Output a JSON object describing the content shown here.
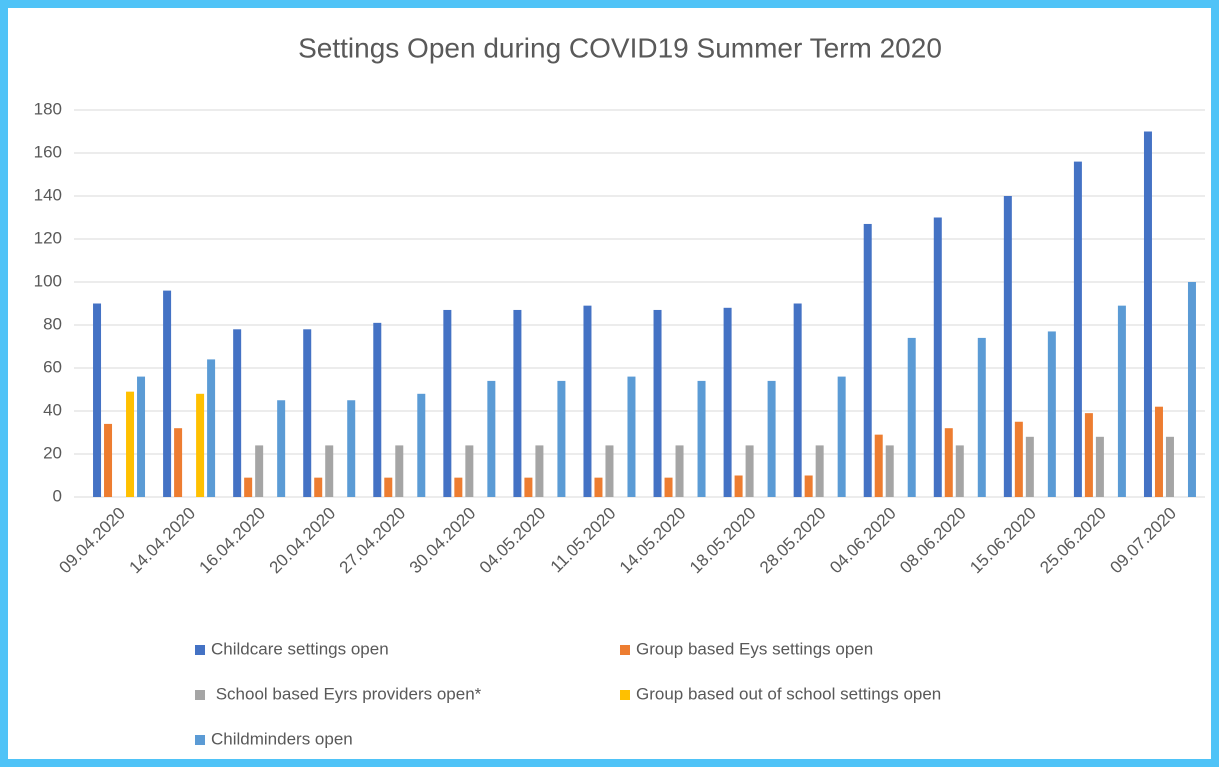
{
  "chart_data": {
    "type": "bar",
    "title": "Settings Open during COVID19 Summer Term 2020",
    "categories": [
      "09.04.2020",
      "14.04.2020",
      "16.04.2020",
      "20.04.2020",
      "27.04.2020",
      "30.04.2020",
      "04.05.2020",
      "11.05.2020",
      "14.05.2020",
      "18.05.2020",
      "28.05.2020",
      "04.06.2020",
      "08.06.2020",
      "15.06.2020",
      "25.06.2020",
      "09.07.2020"
    ],
    "series": [
      {
        "name": "Childcare settings open",
        "color": "#4472c4",
        "values": [
          90,
          96,
          78,
          78,
          81,
          87,
          87,
          89,
          87,
          88,
          90,
          127,
          130,
          140,
          156,
          170
        ]
      },
      {
        "name": "Group based Eys settings open",
        "color": "#ed7d31",
        "values": [
          34,
          32,
          9,
          9,
          9,
          9,
          9,
          9,
          9,
          10,
          10,
          29,
          32,
          35,
          39,
          42
        ]
      },
      {
        "name": " School based Eyrs providers open*",
        "color": "#a5a5a5",
        "values": [
          null,
          null,
          24,
          24,
          24,
          24,
          24,
          24,
          24,
          24,
          24,
          24,
          24,
          28,
          28,
          28
        ]
      },
      {
        "name": "Group based out of school settings open",
        "color": "#ffc000",
        "values": [
          49,
          48,
          null,
          null,
          null,
          null,
          null,
          null,
          null,
          null,
          null,
          null,
          null,
          null,
          null,
          null
        ]
      },
      {
        "name": "Childminders open",
        "color": "#5b9bd5",
        "values": [
          56,
          64,
          45,
          45,
          48,
          54,
          54,
          56,
          54,
          54,
          56,
          74,
          74,
          77,
          89,
          100
        ]
      }
    ],
    "ylim": [
      0,
      180
    ],
    "yticks": [
      0,
      20,
      40,
      60,
      80,
      100,
      120,
      140,
      160,
      180
    ],
    "grid": true,
    "legend": "bottom"
  }
}
